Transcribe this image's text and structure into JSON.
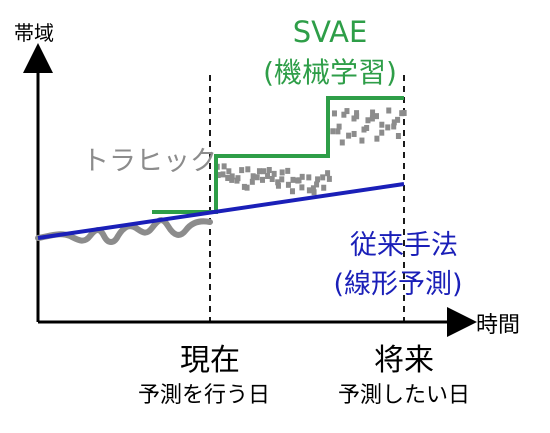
{
  "axes": {
    "y_label": "帯域",
    "x_label": "時間"
  },
  "traffic": {
    "label": "トラヒック",
    "color": "#8c8c8c"
  },
  "svae": {
    "label_line1": "SVAE",
    "label_line2": "(機械学習)",
    "color": "#2e9e48"
  },
  "conventional": {
    "label_line1": "従来手法",
    "label_line2": "(線形予測)",
    "color": "#1a1fb8"
  },
  "markers": {
    "present_title": "現在",
    "present_sub": "予測を行う日",
    "future_title": "将来",
    "future_sub": "予測したい日"
  }
}
